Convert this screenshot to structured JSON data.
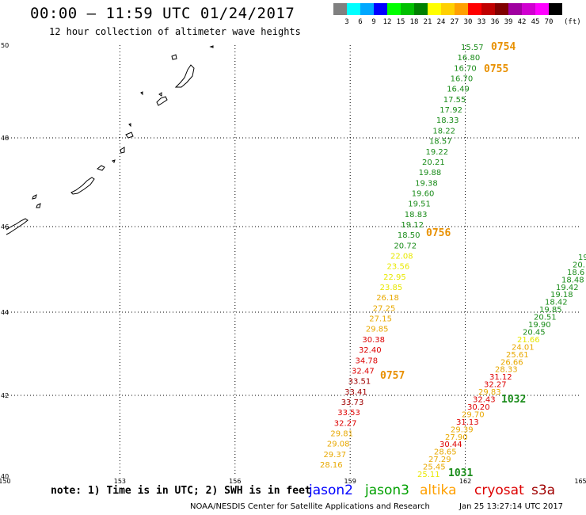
{
  "title": "00:00 – 11:59 UTC 01/24/2017",
  "subtitle": "12 hour collection of altimeter wave heights",
  "legend": {
    "unit": "(ft)",
    "items": [
      {
        "label": "3",
        "color": "#808080"
      },
      {
        "label": "6",
        "color": "#00ffff"
      },
      {
        "label": "9",
        "color": "#00a8ff"
      },
      {
        "label": "12",
        "color": "#0000ff"
      },
      {
        "label": "15",
        "color": "#00ff00"
      },
      {
        "label": "18",
        "color": "#00c000"
      },
      {
        "label": "21",
        "color": "#008000"
      },
      {
        "label": "24",
        "color": "#ffff00"
      },
      {
        "label": "27",
        "color": "#ffd000"
      },
      {
        "label": "30",
        "color": "#ffa000"
      },
      {
        "label": "33",
        "color": "#ff0000"
      },
      {
        "label": "36",
        "color": "#c00000"
      },
      {
        "label": "39",
        "color": "#800000"
      },
      {
        "label": "42",
        "color": "#a000a0"
      },
      {
        "label": "45",
        "color": "#d000d0"
      },
      {
        "label": "70",
        "color": "#ff00ff"
      },
      {
        "label": "",
        "color": "#000000"
      }
    ]
  },
  "axes": {
    "x_ticks": [
      "150",
      "153",
      "156",
      "159",
      "162",
      "165"
    ],
    "y_ticks": [
      "50",
      "48",
      "46",
      "44",
      "42",
      "40"
    ]
  },
  "colors": {
    "green": "#1a8c1a",
    "yellow": "#e8e800",
    "gold": "#e8a800",
    "orange": "#e89000",
    "red": "#dd0000",
    "darkred": "#a00000"
  },
  "tracks": [
    {
      "id": "track-1",
      "points": [
        {
          "v": "15.57",
          "c": "green"
        },
        {
          "v": "16.80",
          "c": "green"
        },
        {
          "v": "16.70",
          "c": "green"
        },
        {
          "v": "16.70",
          "c": "green"
        },
        {
          "v": "16.49",
          "c": "green"
        },
        {
          "v": "17.55",
          "c": "green"
        },
        {
          "v": "17.92",
          "c": "green"
        },
        {
          "v": "18.33",
          "c": "green"
        },
        {
          "v": "18.22",
          "c": "green"
        },
        {
          "v": "18.57",
          "c": "green"
        },
        {
          "v": "19.22",
          "c": "green"
        },
        {
          "v": "20.21",
          "c": "green"
        },
        {
          "v": "19.88",
          "c": "green"
        },
        {
          "v": "19.38",
          "c": "green"
        },
        {
          "v": "19.60",
          "c": "green"
        },
        {
          "v": "19.51",
          "c": "green"
        },
        {
          "v": "18.83",
          "c": "green"
        },
        {
          "v": "19.12",
          "c": "green"
        },
        {
          "v": "18.50",
          "c": "green"
        },
        {
          "v": "20.72",
          "c": "green"
        },
        {
          "v": "22.08",
          "c": "yellow"
        },
        {
          "v": "23.56",
          "c": "yellow"
        },
        {
          "v": "22.95",
          "c": "yellow"
        },
        {
          "v": "23.85",
          "c": "yellow"
        },
        {
          "v": "26.18",
          "c": "gold"
        },
        {
          "v": "27.25",
          "c": "gold"
        },
        {
          "v": "27.15",
          "c": "gold"
        },
        {
          "v": "29.85",
          "c": "gold"
        },
        {
          "v": "30.38",
          "c": "red"
        },
        {
          "v": "32.40",
          "c": "red"
        },
        {
          "v": "34.78",
          "c": "red"
        },
        {
          "v": "32.47",
          "c": "red"
        },
        {
          "v": "33.51",
          "c": "darkred"
        },
        {
          "v": "33.41",
          "c": "darkred"
        },
        {
          "v": "33.73",
          "c": "darkred"
        },
        {
          "v": "33.53",
          "c": "red"
        },
        {
          "v": "32.27",
          "c": "red"
        },
        {
          "v": "29.81",
          "c": "gold"
        },
        {
          "v": "29.08",
          "c": "gold"
        },
        {
          "v": "29.37",
          "c": "gold"
        },
        {
          "v": "28.16",
          "c": "gold"
        }
      ]
    },
    {
      "id": "track-2",
      "points": [
        {
          "v": "19",
          "c": "green"
        },
        {
          "v": "20.",
          "c": "green"
        },
        {
          "v": "18.6",
          "c": "green"
        },
        {
          "v": "18.48",
          "c": "green"
        },
        {
          "v": "19.42",
          "c": "green"
        },
        {
          "v": "19.18",
          "c": "green"
        },
        {
          "v": "18.42",
          "c": "green"
        },
        {
          "v": "19.85",
          "c": "green"
        },
        {
          "v": "20.51",
          "c": "green"
        },
        {
          "v": "19.90",
          "c": "green"
        },
        {
          "v": "20.45",
          "c": "green"
        },
        {
          "v": "21.66",
          "c": "yellow"
        },
        {
          "v": "24.01",
          "c": "gold"
        },
        {
          "v": "25.61",
          "c": "gold"
        },
        {
          "v": "26.66",
          "c": "gold"
        },
        {
          "v": "28.33",
          "c": "gold"
        },
        {
          "v": "31.12",
          "c": "red"
        },
        {
          "v": "32.27",
          "c": "red"
        },
        {
          "v": "29.83",
          "c": "gold"
        },
        {
          "v": "32.43",
          "c": "red"
        },
        {
          "v": "30.20",
          "c": "red"
        },
        {
          "v": "29.70",
          "c": "gold"
        },
        {
          "v": "31.13",
          "c": "red"
        },
        {
          "v": "29.39",
          "c": "gold"
        },
        {
          "v": "27.90",
          "c": "gold"
        },
        {
          "v": "30.44",
          "c": "red"
        },
        {
          "v": "28.65",
          "c": "gold"
        },
        {
          "v": "27.29",
          "c": "gold"
        },
        {
          "v": "25.45",
          "c": "gold"
        },
        {
          "v": "25.11",
          "c": "yellow"
        }
      ]
    }
  ],
  "time_labels": [
    {
      "text": "0754",
      "c": "orange"
    },
    {
      "text": "0755",
      "c": "orange"
    },
    {
      "text": "0756",
      "c": "orange"
    },
    {
      "text": "0757",
      "c": "orange"
    },
    {
      "text": "1032",
      "c": "green"
    },
    {
      "text": "1031",
      "c": "green"
    }
  ],
  "note": "note: 1) Time is in UTC; 2) SWH is in feet",
  "satellites": [
    {
      "name": "jason2",
      "color": "#0000ff"
    },
    {
      "name": "jason3",
      "color": "#00a000"
    },
    {
      "name": "altika",
      "color": "#ffa000"
    },
    {
      "name": "cryosat",
      "color": "#dd0000"
    },
    {
      "name": "s3a",
      "color": "#a00000"
    }
  ],
  "credit": "NOAA/NESDIS Center for Satellite Applications and Research",
  "timestamp": "Jan 25 13:27:14 UTC 2017"
}
